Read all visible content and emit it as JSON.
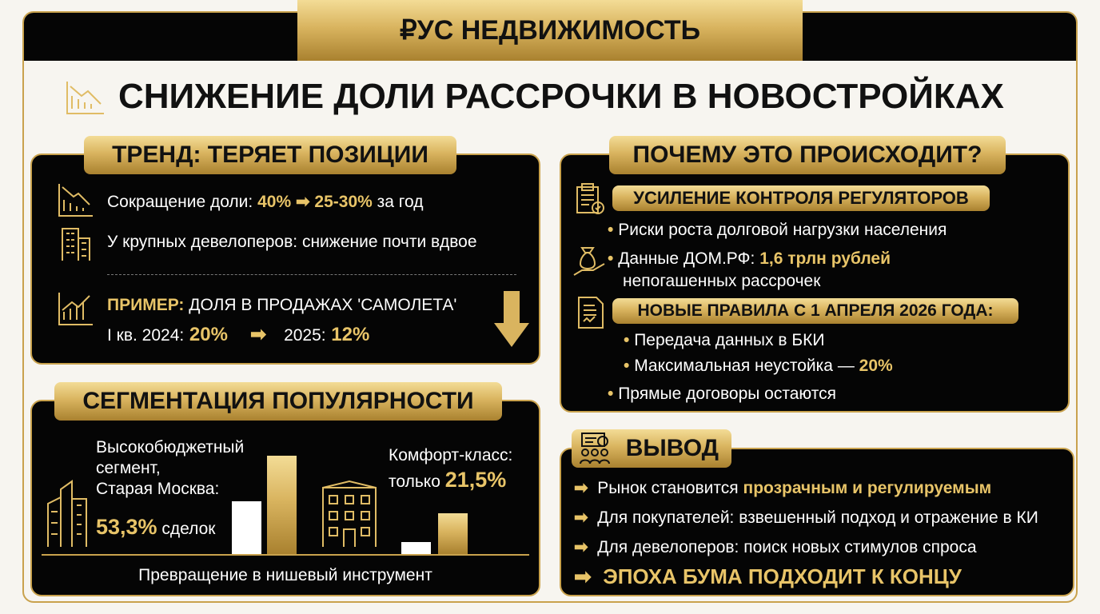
{
  "brand": "₽УС НЕДВИЖИМОСТЬ",
  "title": "СНИЖЕНИЕ ДОЛИ РАССРОЧКИ В НОВОСТРОЙКАХ",
  "trend": {
    "heading": "ТРЕНД: ТЕРЯЕТ ПОЗИЦИИ",
    "share": {
      "label": "Сокращение доли:",
      "from": "40%",
      "to": "25-30%",
      "suffix": "за год"
    },
    "developers": "У крупных девелоперов: снижение почти вдвое",
    "example": {
      "label": "ПРИМЕР:",
      "text": "ДОЛЯ В ПРОДАЖАХ 'САМОЛЕТА'",
      "q_label": "I кв. 2024:",
      "q_value": "20%",
      "y_label": "2025:",
      "y_value": "12%"
    }
  },
  "segmentation": {
    "heading": "СЕГМЕНТАЦИЯ ПОПУЛЯРНОСТИ",
    "premium": {
      "lines": [
        "Высокобюджетный",
        "сегмент,",
        "Старая Москва:"
      ],
      "value": "53,3%",
      "suffix": "сделок"
    },
    "comfort": {
      "label": "Комфорт-класс:",
      "prefix": "только",
      "value": "21,5%"
    },
    "footer": "Превращение в нишевый инструмент"
  },
  "reasons": {
    "heading": "ПОЧЕМУ ЭТО ПРОИСХОДИТ?",
    "control": {
      "heading": "УСИЛЕНИЕ КОНТРОЛЯ РЕГУЛЯТОРОВ",
      "risk": "Риски роста долговой нагрузки населения",
      "dom_label": "Данные ДОМ.РФ:",
      "dom_value": "1,6 трлн рублей",
      "dom_suffix": "непогашенных рассрочек"
    },
    "rules": {
      "heading": "НОВЫЕ ПРАВИЛА С 1 АПРЕЛЯ 2026 ГОДА:",
      "bki": "Передача данных в БКИ",
      "penalty_label": "Максимальная неустойка —",
      "penalty_value": "20%"
    },
    "direct": "Прямые договоры остаются"
  },
  "conclusion": {
    "heading": "ВЫВОД",
    "market_label": "Рынок становится",
    "market_value": "прозрачным и регулируемым",
    "buyers": "Для покупателей: взвешенный подход и отражение в КИ",
    "developers": "Для девелоперов: поиск новых стимулов спроса",
    "final": "ЭПОХА БУМА ПОДХОДИТ К КОНЦУ"
  }
}
